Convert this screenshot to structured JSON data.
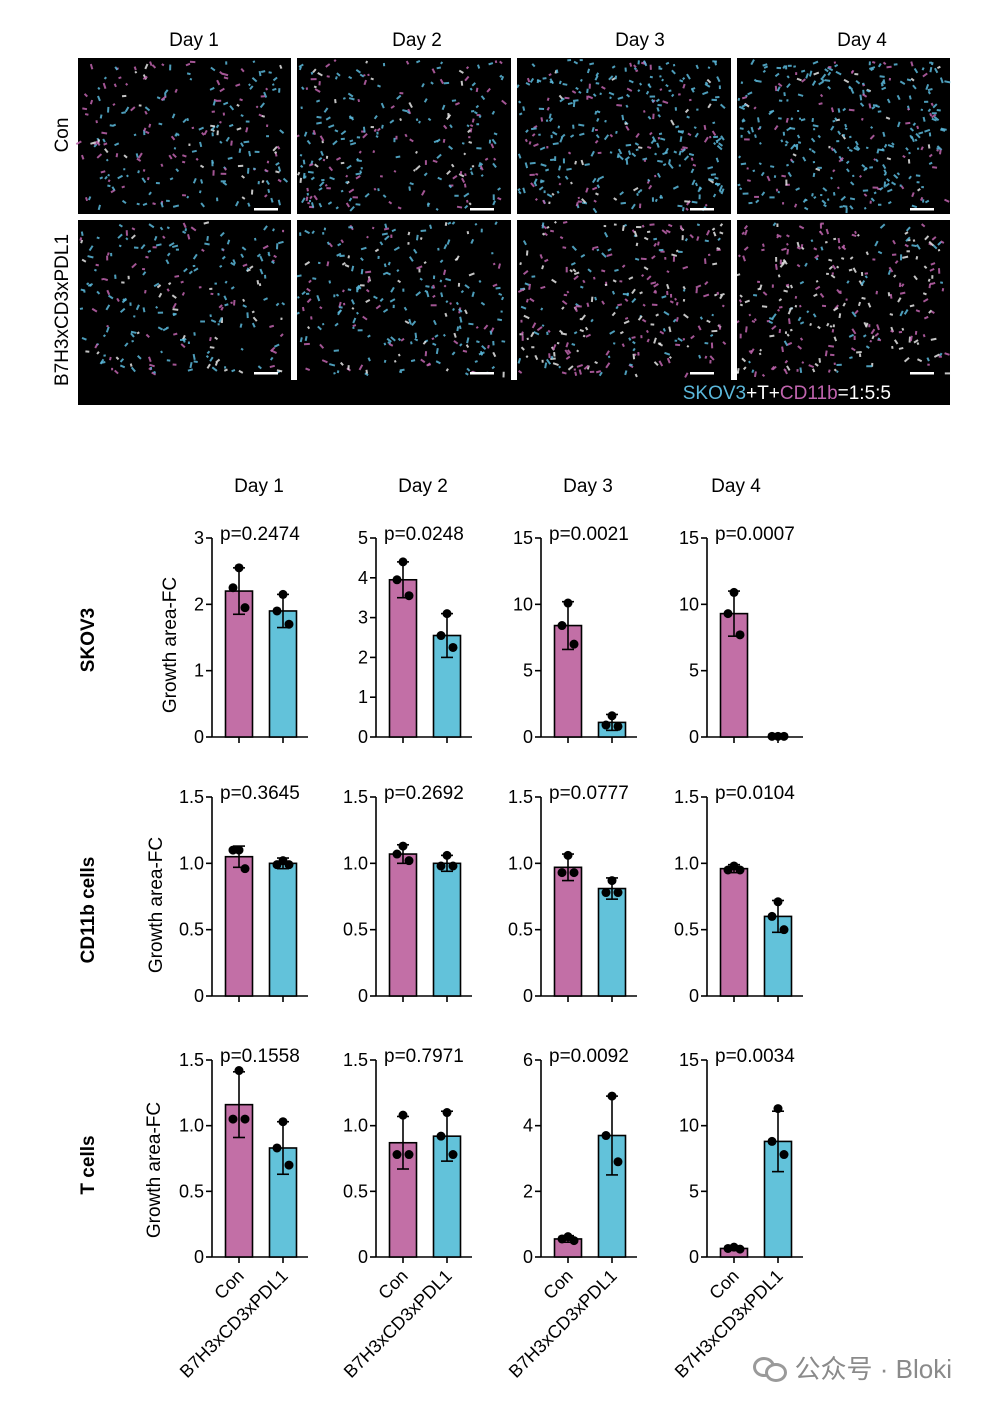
{
  "colors": {
    "con": "#C26FA6",
    "treated": "#62C2DA",
    "cyan_text": "#5BB8DB",
    "magenta_text": "#C064AE"
  },
  "micrograph": {
    "day_labels": [
      "Day 1",
      "Day 2",
      "Day 3",
      "Day 4"
    ],
    "row_labels": [
      "Con",
      "B7H3xCD3xPDL1"
    ],
    "legend": {
      "part1": "SKOV3",
      "part2": "+T+",
      "part3": "CD11b",
      "part4": "=1:5:5"
    }
  },
  "chart_columns": [
    "Day 1",
    "Day 2",
    "Day 3",
    "Day 4"
  ],
  "row_titles": [
    "SKOV3",
    "CD11b cells",
    "T cells"
  ],
  "ylabel": "Growth area-FC",
  "xtick_labels": [
    "Con",
    "B7H3xCD3xPDL1"
  ],
  "watermark": "公众号 · Bloki",
  "chart_data": [
    {
      "type": "bar",
      "row": "SKOV3",
      "column": "Day 1",
      "pvalue": "p=0.2474",
      "ylim": [
        0,
        3
      ],
      "yticks": [
        "0",
        "1",
        "2",
        "3"
      ],
      "ytick_values": [
        0,
        1,
        2,
        3
      ],
      "categories": [
        "Con",
        "B7H3xCD3xPDL1"
      ],
      "values": [
        2.2,
        1.9
      ],
      "error": [
        0.35,
        0.25
      ],
      "points": [
        [
          2.55,
          2.25,
          1.95
        ],
        [
          2.15,
          1.9,
          1.7
        ]
      ]
    },
    {
      "type": "bar",
      "row": "SKOV3",
      "column": "Day 2",
      "pvalue": "p=0.0248",
      "ylim": [
        0,
        5
      ],
      "yticks": [
        "0",
        "1",
        "2",
        "3",
        "4",
        "5"
      ],
      "ytick_values": [
        0,
        1,
        2,
        3,
        4,
        5
      ],
      "categories": [
        "Con",
        "B7H3xCD3xPDL1"
      ],
      "values": [
        3.95,
        2.55
      ],
      "error": [
        0.45,
        0.55
      ],
      "points": [
        [
          4.4,
          3.95,
          3.55
        ],
        [
          3.1,
          2.55,
          2.25
        ]
      ]
    },
    {
      "type": "bar",
      "row": "SKOV3",
      "column": "Day 3",
      "pvalue": "p=0.0021",
      "ylim": [
        0,
        15
      ],
      "yticks": [
        "0",
        "5",
        "10",
        "15"
      ],
      "ytick_values": [
        0,
        5,
        10,
        15
      ],
      "categories": [
        "Con",
        "B7H3xCD3xPDL1"
      ],
      "values": [
        8.4,
        1.1
      ],
      "error": [
        1.8,
        0.6
      ],
      "points": [
        [
          10.1,
          8.4,
          7.0
        ],
        [
          1.6,
          0.9,
          0.8
        ]
      ]
    },
    {
      "type": "bar",
      "row": "SKOV3",
      "column": "Day 4",
      "pvalue": "p=0.0007",
      "ylim": [
        0,
        15
      ],
      "yticks": [
        "0",
        "5",
        "10",
        "15"
      ],
      "ytick_values": [
        0,
        5,
        10,
        15
      ],
      "categories": [
        "Con",
        "B7H3xCD3xPDL1"
      ],
      "values": [
        9.3,
        0.05
      ],
      "error": [
        1.7,
        0.02
      ],
      "points": [
        [
          10.9,
          9.3,
          7.7
        ],
        [
          0.05,
          0.05,
          0.05
        ]
      ]
    },
    {
      "type": "bar",
      "row": "CD11b cells",
      "column": "Day 1",
      "pvalue": "p=0.3645",
      "ylim": [
        0,
        1.5
      ],
      "yticks": [
        "0",
        "0.5",
        "1.0",
        "1.5"
      ],
      "ytick_values": [
        0,
        0.5,
        1.0,
        1.5
      ],
      "categories": [
        "Con",
        "B7H3xCD3xPDL1"
      ],
      "values": [
        1.05,
        1.0
      ],
      "error": [
        0.08,
        0.04
      ],
      "points": [
        [
          1.1,
          1.1,
          0.96
        ],
        [
          1.02,
          0.99,
          0.99
        ]
      ]
    },
    {
      "type": "bar",
      "row": "CD11b cells",
      "column": "Day 2",
      "pvalue": "p=0.2692",
      "ylim": [
        0,
        1.5
      ],
      "yticks": [
        "0",
        "0.5",
        "1.0",
        "1.5"
      ],
      "ytick_values": [
        0,
        0.5,
        1.0,
        1.5
      ],
      "categories": [
        "Con",
        "B7H3xCD3xPDL1"
      ],
      "values": [
        1.07,
        1.0
      ],
      "error": [
        0.07,
        0.06
      ],
      "points": [
        [
          1.13,
          1.07,
          1.02
        ],
        [
          1.06,
          0.98,
          0.98
        ]
      ]
    },
    {
      "type": "bar",
      "row": "CD11b cells",
      "column": "Day 3",
      "pvalue": "p=0.0777",
      "ylim": [
        0,
        1.5
      ],
      "yticks": [
        "0",
        "0.5",
        "1.0",
        "1.5"
      ],
      "ytick_values": [
        0,
        0.5,
        1.0,
        1.5
      ],
      "categories": [
        "Con",
        "B7H3xCD3xPDL1"
      ],
      "values": [
        0.97,
        0.81
      ],
      "error": [
        0.1,
        0.08
      ],
      "points": [
        [
          1.06,
          0.93,
          0.93
        ],
        [
          0.87,
          0.78,
          0.78
        ]
      ]
    },
    {
      "type": "bar",
      "row": "CD11b cells",
      "column": "Day 4",
      "pvalue": "p=0.0104",
      "ylim": [
        0,
        1.5
      ],
      "yticks": [
        "0",
        "0.5",
        "1.0",
        "1.5"
      ],
      "ytick_values": [
        0,
        0.5,
        1.0,
        1.5
      ],
      "categories": [
        "Con",
        "B7H3xCD3xPDL1"
      ],
      "values": [
        0.96,
        0.6
      ],
      "error": [
        0.03,
        0.12
      ],
      "points": [
        [
          0.98,
          0.95,
          0.95
        ],
        [
          0.71,
          0.6,
          0.5
        ]
      ]
    },
    {
      "type": "bar",
      "row": "T cells",
      "column": "Day 1",
      "pvalue": "p=0.1558",
      "ylim": [
        0,
        1.5
      ],
      "yticks": [
        "0",
        "0.5",
        "1.0",
        "1.5"
      ],
      "ytick_values": [
        0,
        0.5,
        1.0,
        1.5
      ],
      "categories": [
        "Con",
        "B7H3xCD3xPDL1"
      ],
      "values": [
        1.16,
        0.83
      ],
      "error": [
        0.25,
        0.2
      ],
      "points": [
        [
          1.42,
          1.05,
          1.05
        ],
        [
          1.03,
          0.83,
          0.7
        ]
      ]
    },
    {
      "type": "bar",
      "row": "T cells",
      "column": "Day 2",
      "pvalue": "p=0.7971",
      "ylim": [
        0,
        1.5
      ],
      "yticks": [
        "0",
        "0.5",
        "1.0",
        "1.5"
      ],
      "ytick_values": [
        0,
        0.5,
        1.0,
        1.5
      ],
      "categories": [
        "Con",
        "B7H3xCD3xPDL1"
      ],
      "values": [
        0.87,
        0.92
      ],
      "error": [
        0.2,
        0.19
      ],
      "points": [
        [
          1.08,
          0.78,
          0.78
        ],
        [
          1.1,
          0.92,
          0.78
        ]
      ]
    },
    {
      "type": "bar",
      "row": "T cells",
      "column": "Day 3",
      "pvalue": "p=0.0092",
      "ylim": [
        0,
        6
      ],
      "yticks": [
        "0",
        "2",
        "4",
        "6"
      ],
      "ytick_values": [
        0,
        2,
        4,
        6
      ],
      "categories": [
        "Con",
        "B7H3xCD3xPDL1"
      ],
      "values": [
        0.55,
        3.7
      ],
      "error": [
        0.1,
        1.2
      ],
      "points": [
        [
          0.62,
          0.55,
          0.5
        ],
        [
          4.9,
          3.7,
          2.9
        ]
      ]
    },
    {
      "type": "bar",
      "row": "T cells",
      "column": "Day 4",
      "pvalue": "p=0.0034",
      "ylim": [
        0,
        15
      ],
      "yticks": [
        "0",
        "5",
        "10",
        "15"
      ],
      "ytick_values": [
        0,
        5,
        10,
        15
      ],
      "categories": [
        "Con",
        "B7H3xCD3xPDL1"
      ],
      "values": [
        0.65,
        8.8
      ],
      "error": [
        0.15,
        2.3
      ],
      "points": [
        [
          0.75,
          0.65,
          0.6
        ],
        [
          11.3,
          8.8,
          7.8
        ]
      ]
    }
  ]
}
